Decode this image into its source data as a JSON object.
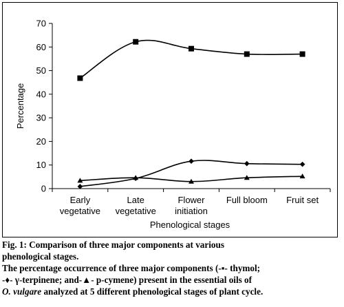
{
  "chart_data": {
    "type": "line",
    "xlabel": "Phenological stages",
    "ylabel": "Percentage",
    "ylim": [
      0,
      70
    ],
    "yticks": [
      0,
      10,
      20,
      30,
      40,
      50,
      60,
      70
    ],
    "categories": [
      [
        "Early",
        "vegetative"
      ],
      [
        "Late",
        "vegetative"
      ],
      [
        "Flower",
        "initiation"
      ],
      [
        "Full bloom"
      ],
      [
        "Fruit set"
      ]
    ],
    "grid": false,
    "legend": "none",
    "series": [
      {
        "marker": "square",
        "values": [
          46.8,
          62.2,
          59.3,
          57.0,
          57.0
        ]
      },
      {
        "marker": "diamond",
        "values": [
          0.9,
          4.3,
          11.6,
          10.6,
          10.3
        ]
      },
      {
        "marker": "triangle",
        "values": [
          3.4,
          4.6,
          3.0,
          4.6,
          5.2
        ]
      }
    ],
    "line_color": "#000000"
  },
  "caption": {
    "fig_label": "Fig. 1: ",
    "title_line1": "Comparison of three major components at various",
    "title_line2": "phenological stages.",
    "desc_line1": "The percentage occurrence of three major components (-▪- thymol;",
    "desc_line2": "-♦- γ-terpinene; and-▲- p-cymene) present in the essential oils of",
    "desc_species": "O. vulgare",
    "desc_line3_rest": " analyzed at 5 different phenological stages of plant cycle."
  }
}
